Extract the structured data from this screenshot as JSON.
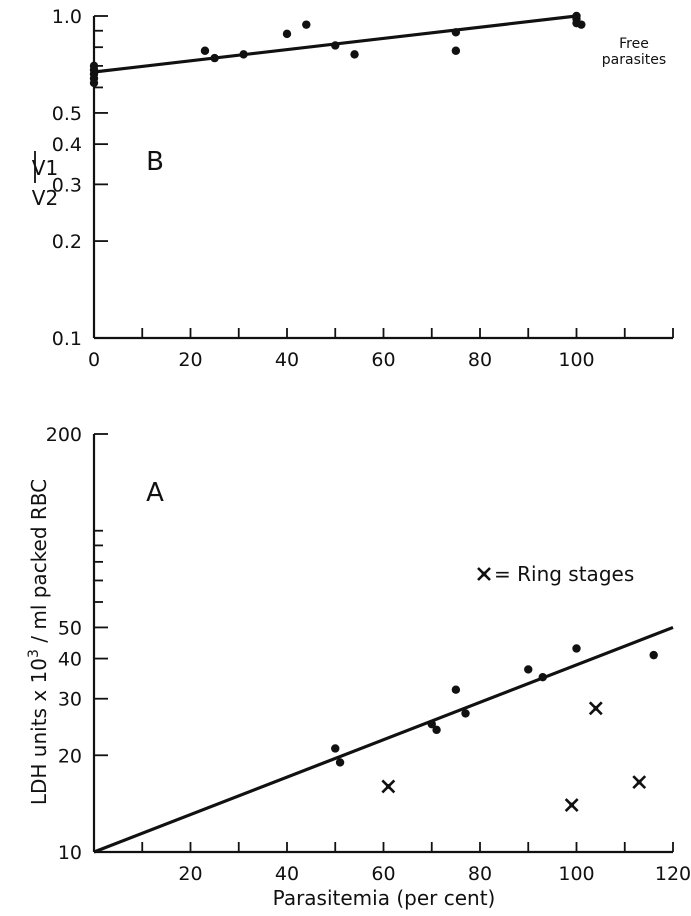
{
  "chart_data": [
    {
      "panel": "B",
      "type": "scatter",
      "scale": "log-y",
      "ylabel_top": "V1",
      "ylabel_bottom": "V2",
      "xlim": [
        0,
        120
      ],
      "ylim": [
        0.1,
        1.0
      ],
      "x_ticks": [
        0,
        20,
        40,
        60,
        80,
        100
      ],
      "y_ticks": [
        0.1,
        0.2,
        0.3,
        0.4,
        0.5,
        1.0
      ],
      "y_tick_labels": [
        "0.1",
        "0.2",
        "0.3",
        "0.4",
        "0.5",
        "1.0"
      ],
      "annotation_line1": "Free",
      "annotation_line2": "parasites",
      "points": [
        {
          "x": 0,
          "y": 0.7
        },
        {
          "x": 0,
          "y": 0.68
        },
        {
          "x": 0,
          "y": 0.66
        },
        {
          "x": 0,
          "y": 0.64
        },
        {
          "x": 0,
          "y": 0.62
        },
        {
          "x": 23,
          "y": 0.78
        },
        {
          "x": 25,
          "y": 0.74
        },
        {
          "x": 31,
          "y": 0.76
        },
        {
          "x": 40,
          "y": 0.88
        },
        {
          "x": 44,
          "y": 0.94
        },
        {
          "x": 50,
          "y": 0.81
        },
        {
          "x": 54,
          "y": 0.76
        },
        {
          "x": 75,
          "y": 0.89
        },
        {
          "x": 75,
          "y": 0.78
        },
        {
          "x": 100,
          "y": 1.0
        },
        {
          "x": 100,
          "y": 0.98
        },
        {
          "x": 100,
          "y": 0.95
        },
        {
          "x": 101,
          "y": 0.94
        }
      ],
      "regression": [
        {
          "x": 0,
          "y": 0.67
        },
        {
          "x": 100,
          "y": 1.0
        }
      ]
    },
    {
      "panel": "A",
      "type": "scatter",
      "scale": "log-y",
      "xlabel": "Parasitemia (per cent)",
      "ylabel": "LDH units x 10^3 / ml packed RBC",
      "ylabel_main": "LDH units x 10",
      "ylabel_exp": "3",
      "ylabel_tail": " / ml packed RBC",
      "xlim": [
        0,
        120
      ],
      "ylim": [
        10,
        200
      ],
      "x_ticks": [
        20,
        40,
        60,
        80,
        100,
        120
      ],
      "y_ticks": [
        10,
        20,
        30,
        40,
        50,
        200
      ],
      "legend_text": "= Ring stages",
      "dots": [
        {
          "x": 50,
          "y": 21
        },
        {
          "x": 51,
          "y": 19
        },
        {
          "x": 70,
          "y": 25
        },
        {
          "x": 71,
          "y": 24
        },
        {
          "x": 75,
          "y": 32
        },
        {
          "x": 77,
          "y": 27
        },
        {
          "x": 90,
          "y": 37
        },
        {
          "x": 93,
          "y": 35
        },
        {
          "x": 100,
          "y": 43
        },
        {
          "x": 116,
          "y": 41
        }
      ],
      "ring_stages": [
        {
          "x": 61,
          "y": 16
        },
        {
          "x": 99,
          "y": 14
        },
        {
          "x": 104,
          "y": 28
        },
        {
          "x": 113,
          "y": 16.5
        }
      ],
      "regression": [
        {
          "x": 0,
          "y": 10
        },
        {
          "x": 120,
          "y": 50
        }
      ]
    }
  ]
}
